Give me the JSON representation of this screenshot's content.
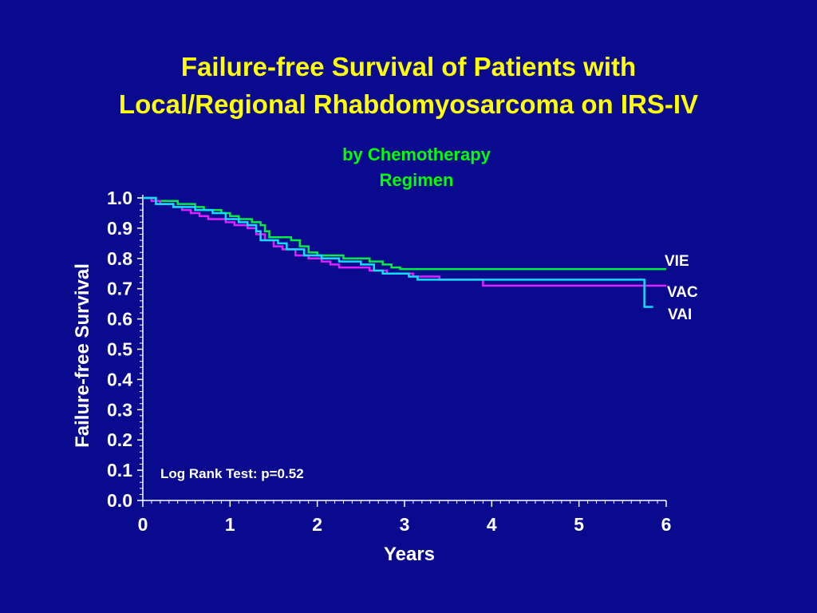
{
  "chart_data": {
    "type": "line",
    "title": [
      "Failure-free Survival of Patients with",
      "Local/Regional Rhabdomyosarcoma on IRS-IV"
    ],
    "subtitle": [
      "by Chemotherapy",
      "Regimen"
    ],
    "xlabel": "Years",
    "ylabel": "Failure-free Survival",
    "xlim": [
      0,
      6
    ],
    "ylim": [
      0,
      1
    ],
    "x_ticks": [
      "0",
      "1",
      "2",
      "3",
      "4",
      "5",
      "6"
    ],
    "y_ticks": [
      "0.0",
      "0.1",
      "0.2",
      "0.3",
      "0.4",
      "0.5",
      "0.6",
      "0.7",
      "0.8",
      "0.9",
      "1.0"
    ],
    "annotation": "Log Rank Test: p=0.52",
    "grid": false,
    "legend": "inline labels at right end of curves",
    "series": [
      {
        "name": "VIE",
        "color": "#00ee44",
        "steps": [
          [
            0.0,
            1.0
          ],
          [
            0.15,
            0.99
          ],
          [
            0.4,
            0.98
          ],
          [
            0.6,
            0.97
          ],
          [
            0.7,
            0.96
          ],
          [
            0.9,
            0.95
          ],
          [
            1.0,
            0.94
          ],
          [
            1.1,
            0.93
          ],
          [
            1.25,
            0.92
          ],
          [
            1.35,
            0.91
          ],
          [
            1.4,
            0.89
          ],
          [
            1.45,
            0.87
          ],
          [
            1.7,
            0.86
          ],
          [
            1.8,
            0.84
          ],
          [
            1.9,
            0.82
          ],
          [
            2.0,
            0.81
          ],
          [
            2.3,
            0.8
          ],
          [
            2.6,
            0.79
          ],
          [
            2.75,
            0.78
          ],
          [
            2.85,
            0.77
          ],
          [
            2.95,
            0.765
          ],
          [
            6.0,
            0.765
          ]
        ]
      },
      {
        "name": "VAC",
        "color": "#dd22ff",
        "steps": [
          [
            0.0,
            1.0
          ],
          [
            0.1,
            0.99
          ],
          [
            0.2,
            0.98
          ],
          [
            0.35,
            0.97
          ],
          [
            0.45,
            0.96
          ],
          [
            0.55,
            0.95
          ],
          [
            0.65,
            0.94
          ],
          [
            0.75,
            0.93
          ],
          [
            0.95,
            0.92
          ],
          [
            1.05,
            0.91
          ],
          [
            1.2,
            0.9
          ],
          [
            1.3,
            0.88
          ],
          [
            1.4,
            0.86
          ],
          [
            1.5,
            0.84
          ],
          [
            1.6,
            0.83
          ],
          [
            1.75,
            0.81
          ],
          [
            1.9,
            0.8
          ],
          [
            2.05,
            0.79
          ],
          [
            2.15,
            0.78
          ],
          [
            2.25,
            0.77
          ],
          [
            2.6,
            0.76
          ],
          [
            2.8,
            0.75
          ],
          [
            3.1,
            0.74
          ],
          [
            3.4,
            0.73
          ],
          [
            3.6,
            0.73
          ],
          [
            3.9,
            0.71
          ],
          [
            6.0,
            0.71
          ]
        ]
      },
      {
        "name": "VAI",
        "color": "#11ddff",
        "steps": [
          [
            0.0,
            1.0
          ],
          [
            0.15,
            0.98
          ],
          [
            0.35,
            0.97
          ],
          [
            0.6,
            0.96
          ],
          [
            0.8,
            0.95
          ],
          [
            0.95,
            0.93
          ],
          [
            1.1,
            0.92
          ],
          [
            1.2,
            0.91
          ],
          [
            1.3,
            0.89
          ],
          [
            1.35,
            0.86
          ],
          [
            1.55,
            0.85
          ],
          [
            1.65,
            0.83
          ],
          [
            1.85,
            0.81
          ],
          [
            2.05,
            0.8
          ],
          [
            2.25,
            0.79
          ],
          [
            2.5,
            0.78
          ],
          [
            2.65,
            0.76
          ],
          [
            2.75,
            0.75
          ],
          [
            3.05,
            0.74
          ],
          [
            3.15,
            0.73
          ],
          [
            3.6,
            0.73
          ],
          [
            5.75,
            0.73
          ],
          [
            5.75,
            0.64
          ],
          [
            5.85,
            0.64
          ]
        ]
      }
    ]
  }
}
